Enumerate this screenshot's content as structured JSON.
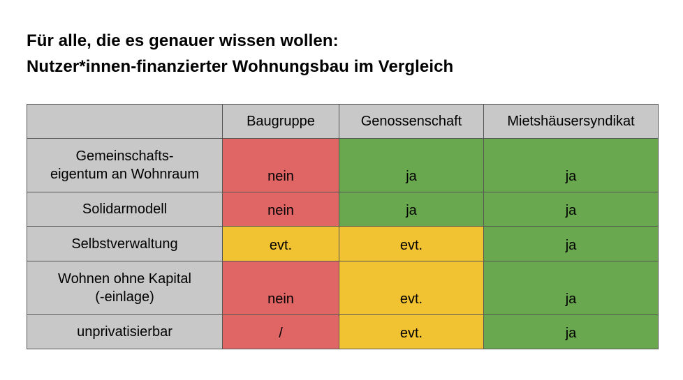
{
  "title": {
    "line1": "Für alle, die es genauer wissen wollen:",
    "line2": "Nutzer*innen-finanzierter Wohnungsbau im Vergleich"
  },
  "table": {
    "corner": "",
    "columns": [
      "Baugruppe",
      "Genossenschaft",
      "Mietshäusersyndikat"
    ],
    "rows": [
      {
        "label": "Gemeinschafts-\neigentum an Wohnraum",
        "cells": [
          "nein",
          "ja",
          "ja"
        ]
      },
      {
        "label": "Solidarmodell",
        "cells": [
          "nein",
          "ja",
          "ja"
        ]
      },
      {
        "label": "Selbstverwaltung",
        "cells": [
          "evt.",
          "evt.",
          "ja"
        ]
      },
      {
        "label": "Wohnen ohne Kapital\n(-einlage)",
        "cells": [
          "nein",
          "evt.",
          "ja"
        ]
      },
      {
        "label": "unprivatisierbar",
        "cells": [
          "/",
          "evt.",
          "ja"
        ]
      }
    ]
  },
  "colors": {
    "header_bg": "#c8c8c8",
    "no": "#e06666",
    "maybe": "#f1c232",
    "yes": "#6aa84f",
    "border": "#555555"
  }
}
